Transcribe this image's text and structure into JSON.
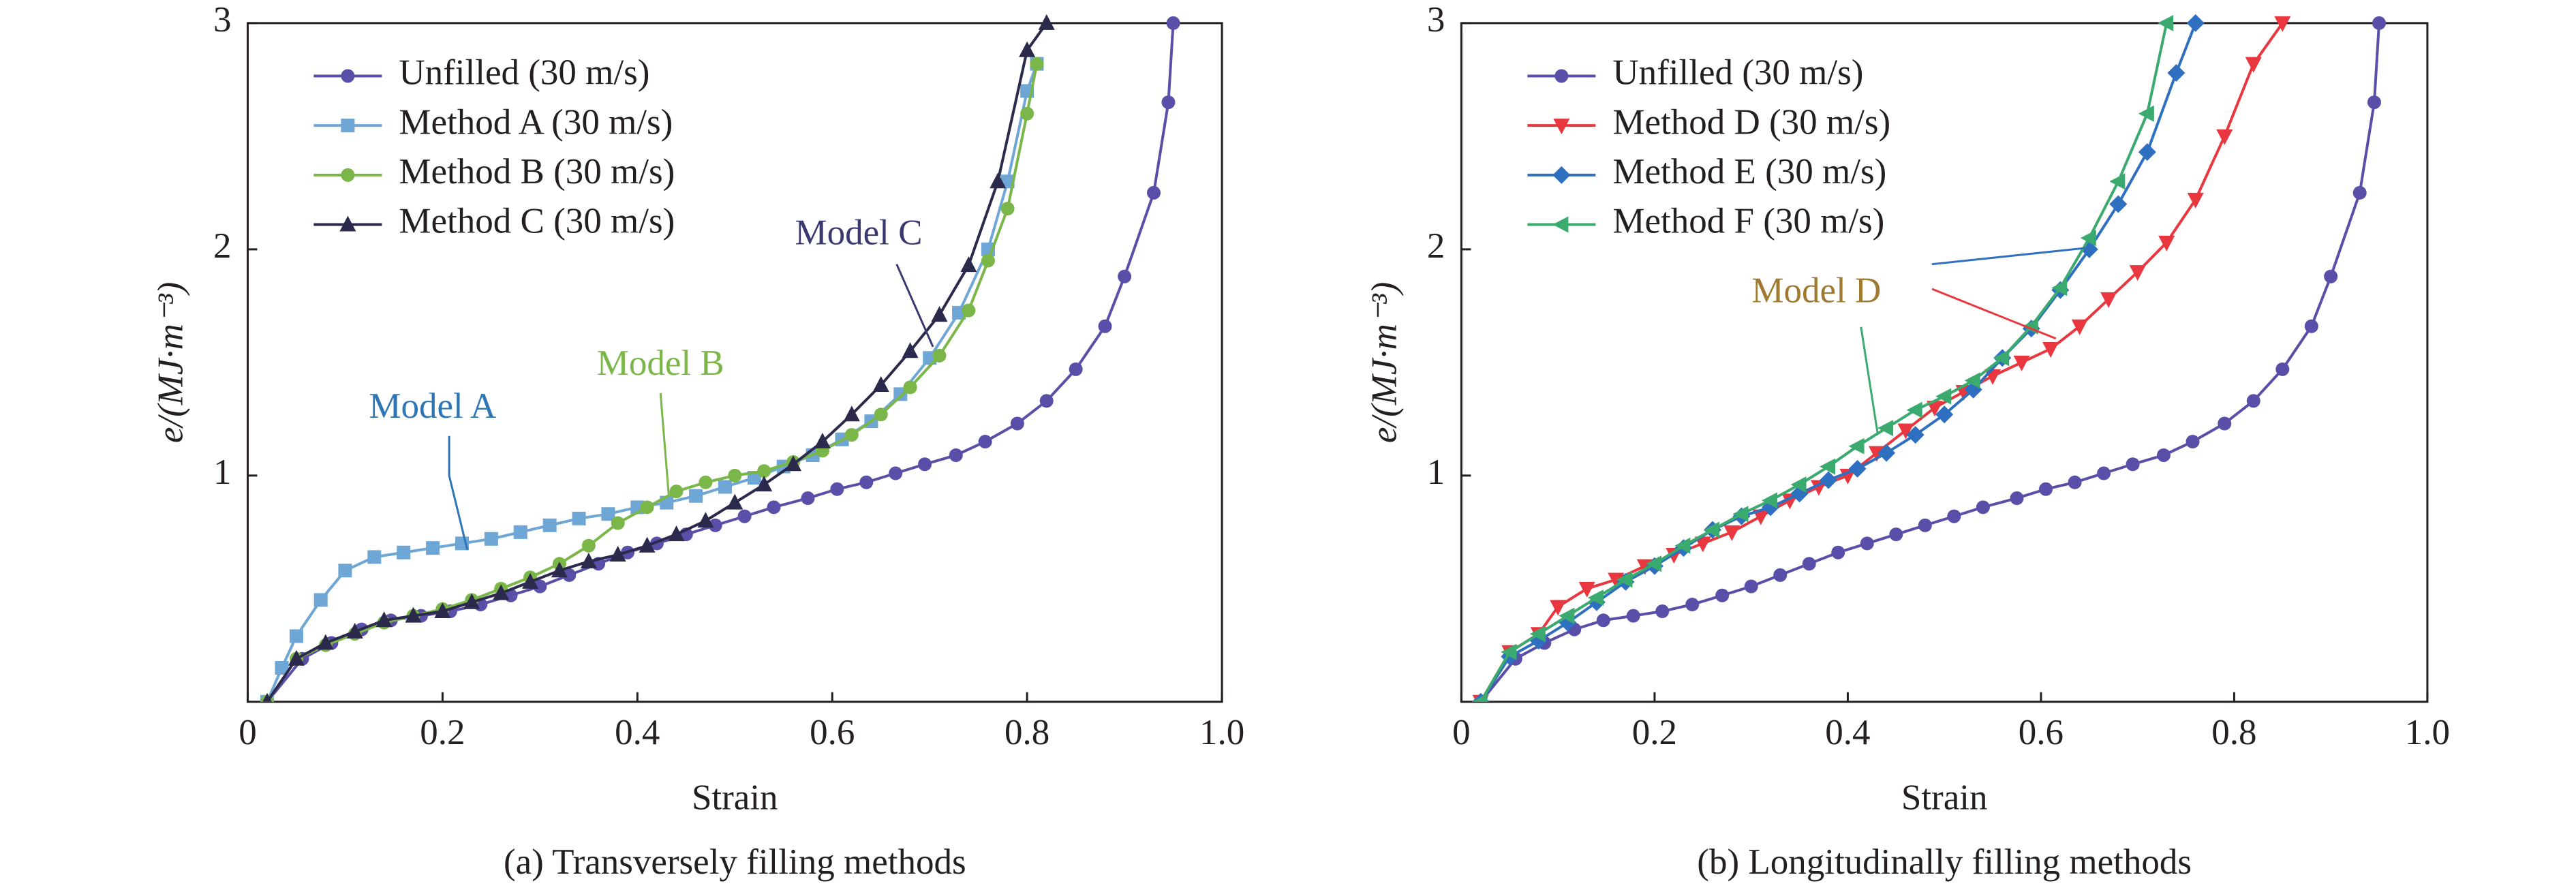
{
  "chart_data": [
    {
      "type": "line",
      "caption": "(a) Transversely filling methods",
      "xlabel": "Strain",
      "ylabel": "e/(MJ·m⁻³)",
      "xlim": [
        0,
        1
      ],
      "ylim": [
        0,
        3
      ],
      "xticks": [
        0,
        0.2,
        0.4,
        0.6,
        0.8,
        {
          "value": 1,
          "label": "1.0"
        }
      ],
      "yticks": [
        1,
        2,
        3
      ],
      "legend": "upper left",
      "series": [
        {
          "name": "Unfilled (30 m/s)",
          "color": "#5a4fa8",
          "marker": "circle",
          "x": [
            0.02,
            0.056,
            0.086,
            0.117,
            0.147,
            0.178,
            0.208,
            0.239,
            0.27,
            0.3,
            0.33,
            0.36,
            0.39,
            0.42,
            0.45,
            0.48,
            0.51,
            0.54,
            0.575,
            0.605,
            0.635,
            0.665,
            0.695,
            0.727,
            0.757,
            0.79,
            0.82,
            0.85,
            0.88,
            0.9,
            0.93,
            0.945,
            0.95
          ],
          "values": [
            0,
            0.19,
            0.26,
            0.32,
            0.36,
            0.38,
            0.4,
            0.43,
            0.47,
            0.51,
            0.56,
            0.61,
            0.66,
            0.7,
            0.74,
            0.78,
            0.82,
            0.86,
            0.9,
            0.94,
            0.97,
            1.01,
            1.05,
            1.09,
            1.15,
            1.23,
            1.33,
            1.47,
            1.66,
            1.88,
            2.25,
            2.65,
            3.0
          ]
        },
        {
          "name": "Method A (30 m/s)",
          "color": "#6ea6d6",
          "marker": "square",
          "x": [
            0.02,
            0.035,
            0.05,
            0.075,
            0.1,
            0.13,
            0.16,
            0.19,
            0.22,
            0.25,
            0.28,
            0.31,
            0.34,
            0.37,
            0.4,
            0.43,
            0.46,
            0.49,
            0.52,
            0.55,
            0.58,
            0.61,
            0.64,
            0.67,
            0.7,
            0.73,
            0.76,
            0.78,
            0.8,
            0.81
          ],
          "values": [
            0,
            0.15,
            0.29,
            0.45,
            0.58,
            0.64,
            0.66,
            0.68,
            0.7,
            0.72,
            0.75,
            0.78,
            0.81,
            0.83,
            0.86,
            0.88,
            0.91,
            0.95,
            0.99,
            1.04,
            1.09,
            1.16,
            1.24,
            1.36,
            1.52,
            1.72,
            2.0,
            2.3,
            2.7,
            2.82
          ]
        },
        {
          "name": "Method B (30 m/s)",
          "color": "#7ab648",
          "marker": "circle",
          "x": [
            0.02,
            0.05,
            0.08,
            0.11,
            0.14,
            0.17,
            0.2,
            0.23,
            0.26,
            0.29,
            0.32,
            0.35,
            0.38,
            0.41,
            0.44,
            0.47,
            0.5,
            0.53,
            0.56,
            0.59,
            0.62,
            0.65,
            0.68,
            0.71,
            0.74,
            0.76,
            0.78,
            0.8,
            0.81
          ],
          "values": [
            0,
            0.19,
            0.25,
            0.3,
            0.35,
            0.38,
            0.41,
            0.45,
            0.5,
            0.55,
            0.61,
            0.69,
            0.79,
            0.86,
            0.93,
            0.97,
            1.0,
            1.02,
            1.06,
            1.11,
            1.18,
            1.27,
            1.39,
            1.53,
            1.73,
            1.95,
            2.18,
            2.6,
            2.82
          ]
        },
        {
          "name": "Method C (30 m/s)",
          "color": "#2b2a4c",
          "marker": "triangle-up",
          "x": [
            0.02,
            0.05,
            0.08,
            0.11,
            0.14,
            0.17,
            0.2,
            0.23,
            0.26,
            0.29,
            0.32,
            0.35,
            0.38,
            0.41,
            0.44,
            0.47,
            0.5,
            0.53,
            0.56,
            0.59,
            0.62,
            0.65,
            0.68,
            0.71,
            0.74,
            0.77,
            0.8,
            0.82
          ],
          "values": [
            0,
            0.19,
            0.26,
            0.31,
            0.36,
            0.38,
            0.4,
            0.44,
            0.48,
            0.53,
            0.58,
            0.62,
            0.65,
            0.69,
            0.74,
            0.8,
            0.88,
            0.96,
            1.05,
            1.15,
            1.27,
            1.4,
            1.55,
            1.71,
            1.93,
            2.3,
            2.88,
            3.0
          ]
        }
      ],
      "annotations": [
        {
          "text": "Model A",
          "color": "#2e75b6"
        },
        {
          "text": "Model B",
          "color": "#7ab648"
        },
        {
          "text": "Model C",
          "color": "#3a3870"
        }
      ]
    },
    {
      "type": "line",
      "caption": "(b) Longitudinally filling methods",
      "xlabel": "Strain",
      "ylabel": "e/(MJ·m⁻³)",
      "xlim": [
        0,
        1
      ],
      "ylim": [
        0,
        3
      ],
      "xticks": [
        0,
        0.2,
        0.4,
        0.6,
        0.8,
        {
          "value": 1,
          "label": "1.0"
        }
      ],
      "yticks": [
        1,
        2,
        3
      ],
      "legend": "upper left",
      "series": [
        {
          "name": "Unfilled (30 m/s)",
          "color": "#5a4fa8",
          "marker": "circle",
          "x": [
            0.02,
            0.056,
            0.086,
            0.117,
            0.147,
            0.178,
            0.208,
            0.239,
            0.27,
            0.3,
            0.33,
            0.36,
            0.39,
            0.42,
            0.45,
            0.48,
            0.51,
            0.54,
            0.575,
            0.605,
            0.635,
            0.665,
            0.695,
            0.727,
            0.757,
            0.79,
            0.82,
            0.85,
            0.88,
            0.9,
            0.93,
            0.945,
            0.95
          ],
          "values": [
            0,
            0.19,
            0.26,
            0.32,
            0.36,
            0.38,
            0.4,
            0.43,
            0.47,
            0.51,
            0.56,
            0.61,
            0.66,
            0.7,
            0.74,
            0.78,
            0.82,
            0.86,
            0.9,
            0.94,
            0.97,
            1.01,
            1.05,
            1.09,
            1.15,
            1.23,
            1.33,
            1.47,
            1.66,
            1.88,
            2.25,
            2.65,
            3.0
          ]
        },
        {
          "name": "Method D (30 m/s)",
          "color": "#e8373f",
          "marker": "triangle-down",
          "x": [
            0.02,
            0.05,
            0.08,
            0.1,
            0.13,
            0.16,
            0.19,
            0.22,
            0.25,
            0.28,
            0.31,
            0.34,
            0.37,
            0.4,
            0.43,
            0.46,
            0.49,
            0.52,
            0.55,
            0.58,
            0.61,
            0.64,
            0.67,
            0.7,
            0.73,
            0.76,
            0.79,
            0.82,
            0.85
          ],
          "values": [
            0,
            0.22,
            0.3,
            0.42,
            0.5,
            0.54,
            0.6,
            0.65,
            0.7,
            0.75,
            0.82,
            0.89,
            0.95,
            1.0,
            1.1,
            1.2,
            1.3,
            1.37,
            1.44,
            1.5,
            1.56,
            1.66,
            1.78,
            1.9,
            2.03,
            2.22,
            2.5,
            2.82,
            3.0
          ]
        },
        {
          "name": "Method E (30 m/s)",
          "color": "#2e6fc0",
          "marker": "diamond",
          "x": [
            0.02,
            0.05,
            0.08,
            0.11,
            0.14,
            0.17,
            0.2,
            0.23,
            0.26,
            0.29,
            0.32,
            0.35,
            0.38,
            0.41,
            0.44,
            0.47,
            0.5,
            0.53,
            0.56,
            0.59,
            0.62,
            0.65,
            0.68,
            0.71,
            0.74,
            0.76
          ],
          "values": [
            0,
            0.2,
            0.27,
            0.35,
            0.44,
            0.53,
            0.6,
            0.68,
            0.76,
            0.82,
            0.86,
            0.92,
            0.98,
            1.03,
            1.1,
            1.18,
            1.27,
            1.38,
            1.52,
            1.65,
            1.82,
            2.0,
            2.2,
            2.43,
            2.78,
            3.0
          ]
        },
        {
          "name": "Method F (30 m/s)",
          "color": "#3aaa6e",
          "marker": "triangle-left",
          "x": [
            0.02,
            0.05,
            0.08,
            0.11,
            0.14,
            0.17,
            0.2,
            0.23,
            0.26,
            0.29,
            0.32,
            0.35,
            0.38,
            0.41,
            0.44,
            0.47,
            0.5,
            0.53,
            0.56,
            0.59,
            0.62,
            0.65,
            0.68,
            0.71,
            0.73
          ],
          "values": [
            0,
            0.22,
            0.3,
            0.38,
            0.46,
            0.54,
            0.61,
            0.69,
            0.76,
            0.83,
            0.89,
            0.96,
            1.04,
            1.13,
            1.21,
            1.29,
            1.35,
            1.42,
            1.52,
            1.66,
            1.83,
            2.05,
            2.3,
            2.6,
            3.0
          ]
        }
      ],
      "annotations": [
        {
          "text": "Model D",
          "color": "#a07a30"
        }
      ]
    }
  ]
}
